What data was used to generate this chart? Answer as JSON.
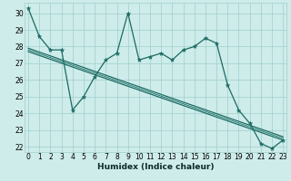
{
  "xlabel": "Humidex (Indice chaleur)",
  "bg_color": "#ceecea",
  "grid_color": "#9ecfcc",
  "line_color": "#1a6b63",
  "ylim": [
    21.7,
    30.6
  ],
  "xlim": [
    -0.3,
    23.3
  ],
  "yticks": [
    22,
    23,
    24,
    25,
    26,
    27,
    28,
    29,
    30
  ],
  "xticks": [
    0,
    1,
    2,
    3,
    4,
    5,
    6,
    7,
    8,
    9,
    10,
    11,
    12,
    13,
    14,
    15,
    16,
    17,
    18,
    19,
    20,
    21,
    22,
    23
  ],
  "y_main": [
    30.3,
    28.6,
    27.8,
    27.8,
    24.2,
    25.0,
    26.2,
    27.2,
    27.6,
    30.0,
    27.2,
    27.4,
    27.6,
    27.2,
    27.8,
    28.0,
    28.5,
    28.2,
    25.7,
    24.2,
    23.4,
    22.2,
    21.9,
    22.4
  ],
  "trend_upper_x0": 0,
  "trend_upper_y0": 27.9,
  "trend_upper_x1": 23,
  "trend_upper_y1": 22.6,
  "trend_lower_x0": 0,
  "trend_lower_y0": 27.7,
  "trend_lower_x1": 23,
  "trend_lower_y1": 22.4,
  "trend_mid_x0": 0,
  "trend_mid_y0": 27.8,
  "trend_mid_x1": 23,
  "trend_mid_y1": 22.5,
  "figsize": [
    3.2,
    2.0
  ],
  "dpi": 100
}
